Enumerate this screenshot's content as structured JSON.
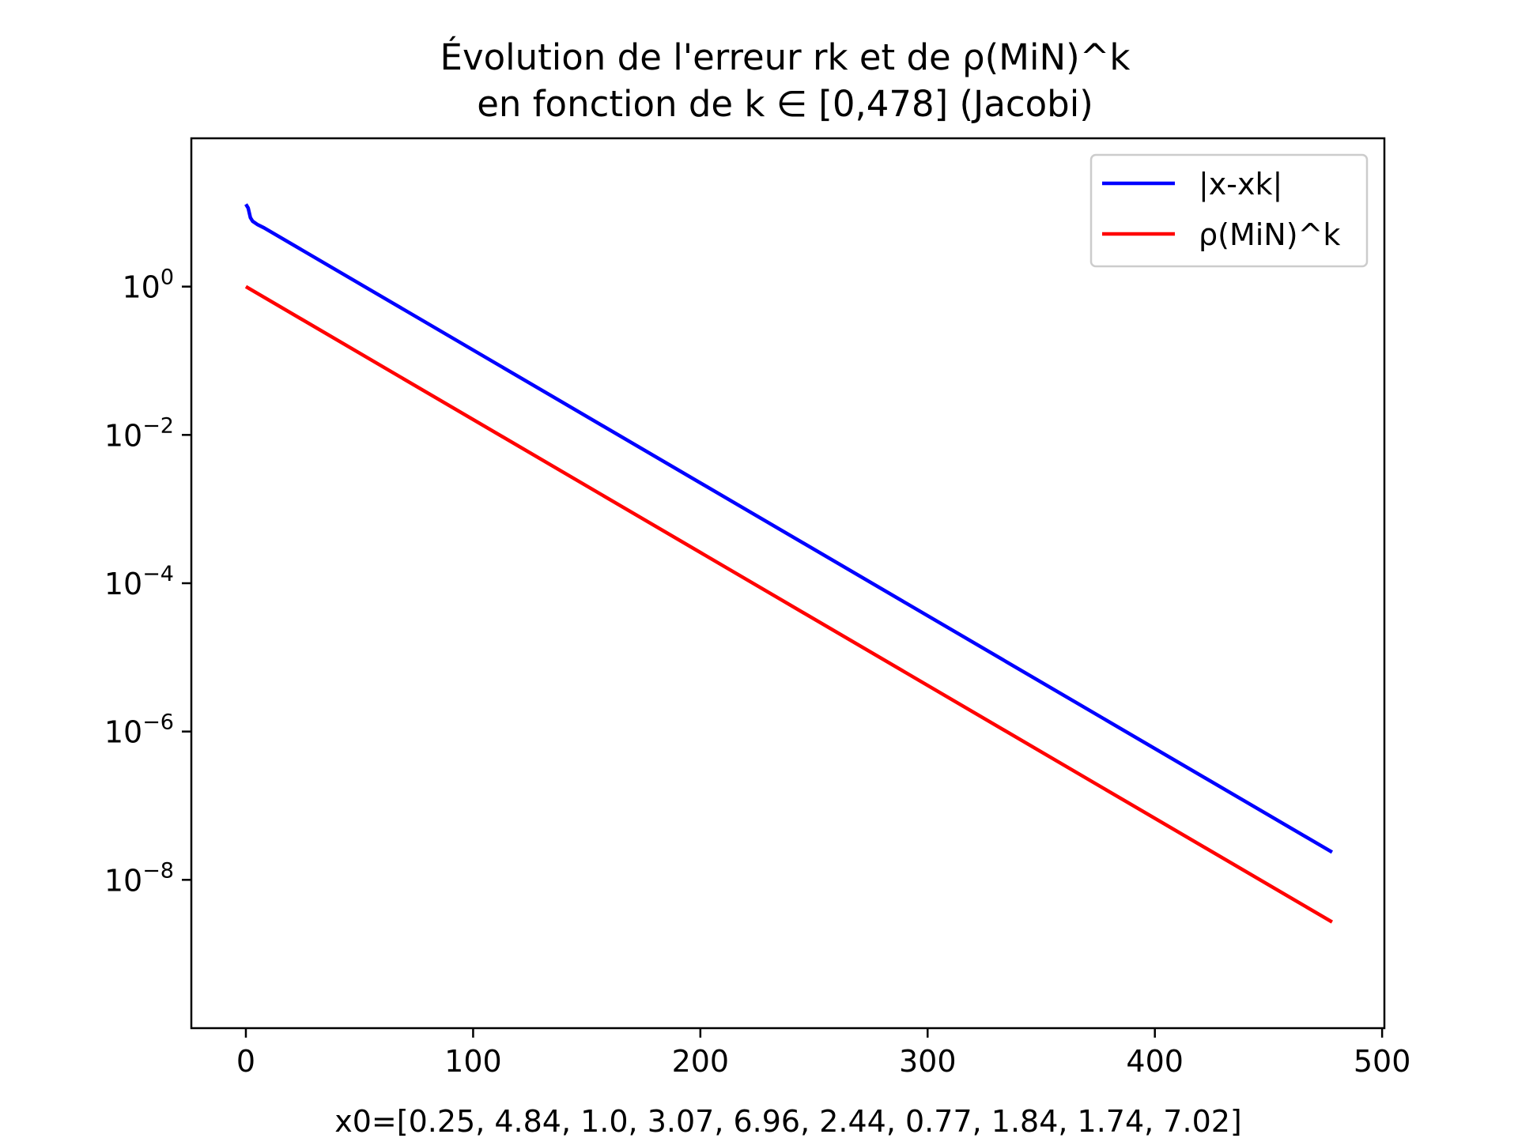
{
  "chart_data": {
    "type": "line",
    "title": [
      "Évolution de l'erreur rk et de ρ(MiN)^k",
      "en fonction de k ∈ [0,478] (Jacobi)"
    ],
    "xlabel": "x0=[0.25, 4.84, 1.0, 3.07, 6.96, 2.44, 0.77, 1.84, 1.74, 7.02]",
    "ylabel": "",
    "xlim": [
      -24,
      501
    ],
    "ylim": [
      1e-10,
      100
    ],
    "yscale": "log",
    "xticks": [
      0,
      100,
      200,
      300,
      400,
      500
    ],
    "xtick_labels": [
      "0",
      "100",
      "200",
      "300",
      "400",
      "500"
    ],
    "yticks": [
      1,
      0.01,
      0.0001,
      1e-06,
      1e-08
    ],
    "ytick_labels": [
      {
        "base": "10",
        "exp": "0"
      },
      {
        "base": "10",
        "exp": "−2"
      },
      {
        "base": "10",
        "exp": "−4"
      },
      {
        "base": "10",
        "exp": "−6"
      },
      {
        "base": "10",
        "exp": "−8"
      }
    ],
    "grid": false,
    "legend_position": "top-right",
    "series": [
      {
        "name": "|x-xk|",
        "color": "#0000ff",
        "x": [
          0,
          1,
          2,
          3,
          5,
          8,
          478
        ],
        "y": [
          12.9,
          11.5,
          8.5,
          7.6,
          6.9,
          6.2,
          2.36e-08
        ]
      },
      {
        "name": "ρ(MiN)^k",
        "color": "#ff0000",
        "x": [
          0,
          478
        ],
        "y": [
          1,
          2.7e-09
        ]
      }
    ]
  }
}
